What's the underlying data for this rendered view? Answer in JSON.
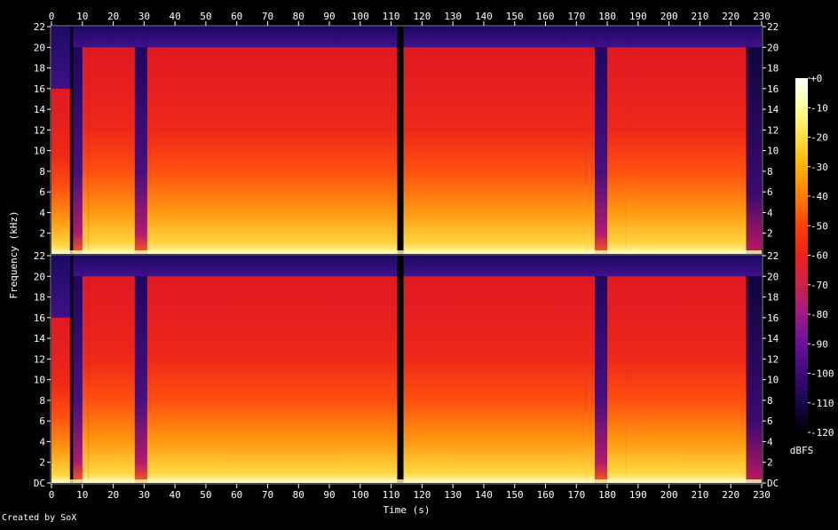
{
  "chart_data": {
    "type": "heatmap",
    "title": "",
    "xlabel": "Time (s)",
    "ylabel": "Frequency (kHz)",
    "xlim": [
      0,
      230
    ],
    "ylim": [
      0,
      22
    ],
    "x_ticks": [
      "0",
      "10",
      "20",
      "30",
      "40",
      "50",
      "60",
      "70",
      "80",
      "90",
      "100",
      "110",
      "120",
      "130",
      "140",
      "150",
      "160",
      "170",
      "180",
      "190",
      "200",
      "210",
      "220",
      "230"
    ],
    "y_ticks_top": [
      "2",
      "4",
      "6",
      "8",
      "10",
      "12",
      "14",
      "16",
      "18",
      "20",
      "22"
    ],
    "y_ticks_bottom": [
      "DC",
      "2",
      "4",
      "6",
      "8",
      "10",
      "12",
      "14",
      "16",
      "18",
      "20",
      "22"
    ],
    "channels": 2,
    "colorbar": {
      "label": "dBFS",
      "range": [
        -120,
        0
      ],
      "ticks": [
        "+0",
        "-10",
        "-20",
        "-30",
        "-40",
        "-50",
        "-60",
        "-70",
        "-80",
        "-90",
        "-100",
        "-110",
        "-120"
      ],
      "colors": [
        "#000000",
        "#1a0650",
        "#3c0a7a",
        "#6c0fa0",
        "#a01888",
        "#d0204c",
        "#f02018",
        "#ff4000",
        "#ff7e00",
        "#ffb000",
        "#ffe040",
        "#ffff9c",
        "#ffffff"
      ]
    },
    "segments": [
      {
        "start": 0,
        "end": 6,
        "level": "loud",
        "cutoff_khz": 16
      },
      {
        "start": 6,
        "end": 7,
        "level": "silent",
        "cutoff_khz": 0
      },
      {
        "start": 7,
        "end": 10,
        "level": "quiet",
        "cutoff_khz": 20
      },
      {
        "start": 10,
        "end": 12,
        "level": "loud",
        "cutoff_khz": 20
      },
      {
        "start": 12,
        "end": 27,
        "level": "loud",
        "cutoff_khz": 20
      },
      {
        "start": 27,
        "end": 31,
        "level": "quiet",
        "cutoff_khz": 20
      },
      {
        "start": 31,
        "end": 112,
        "level": "loud",
        "cutoff_khz": 20
      },
      {
        "start": 112,
        "end": 114,
        "level": "silent",
        "cutoff_khz": 0
      },
      {
        "start": 114,
        "end": 176,
        "level": "loud",
        "cutoff_khz": 20
      },
      {
        "start": 176,
        "end": 180,
        "level": "quiet",
        "cutoff_khz": 20
      },
      {
        "start": 180,
        "end": 186,
        "level": "loud",
        "cutoff_khz": 20
      },
      {
        "start": 186,
        "end": 225,
        "level": "loud",
        "cutoff_khz": 20
      },
      {
        "start": 225,
        "end": 230,
        "level": "fade",
        "cutoff_khz": 20
      }
    ]
  },
  "credit": "Created by SoX"
}
